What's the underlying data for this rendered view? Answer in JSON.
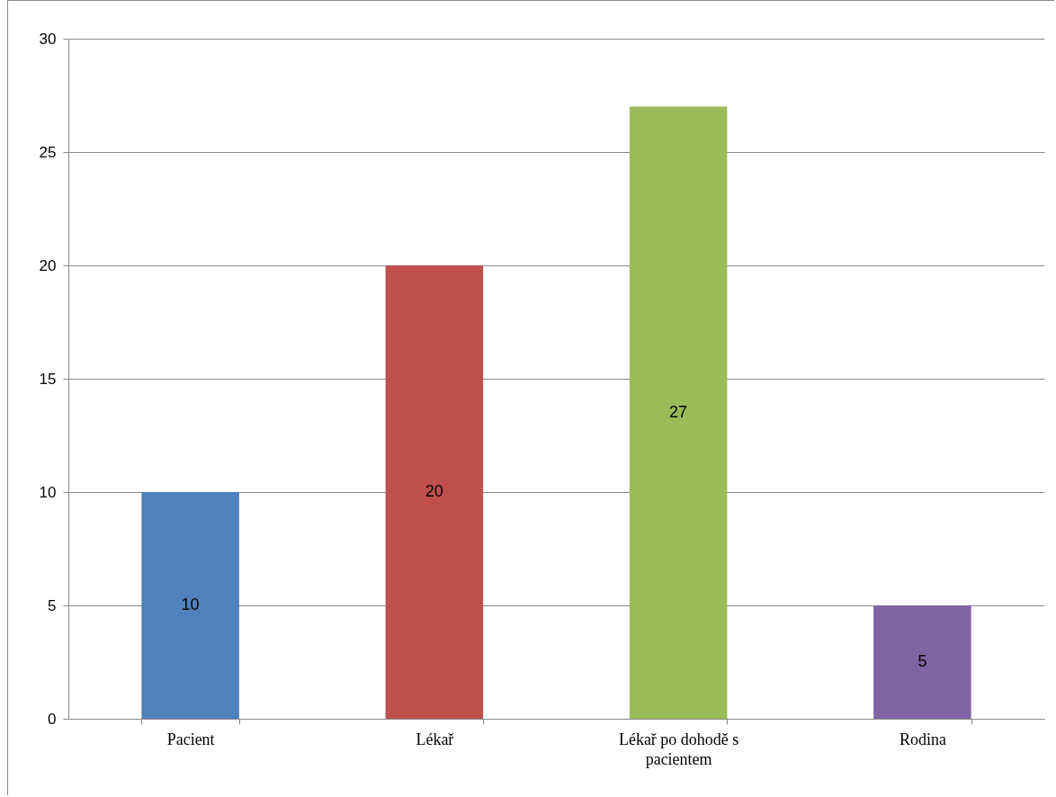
{
  "chart_data": {
    "type": "bar",
    "categories": [
      "Pacient",
      "Lékař",
      "Lékař po dohodě s pacientem",
      "Rodina"
    ],
    "values": [
      10,
      20,
      27,
      5
    ],
    "colors": [
      "#4f81bd",
      "#c0504d",
      "#9bbb59",
      "#8064a2"
    ],
    "ylim": [
      0,
      30
    ],
    "yticks": [
      0,
      5,
      10,
      15,
      20,
      25,
      30
    ],
    "grid": "y",
    "data_labels": true
  }
}
